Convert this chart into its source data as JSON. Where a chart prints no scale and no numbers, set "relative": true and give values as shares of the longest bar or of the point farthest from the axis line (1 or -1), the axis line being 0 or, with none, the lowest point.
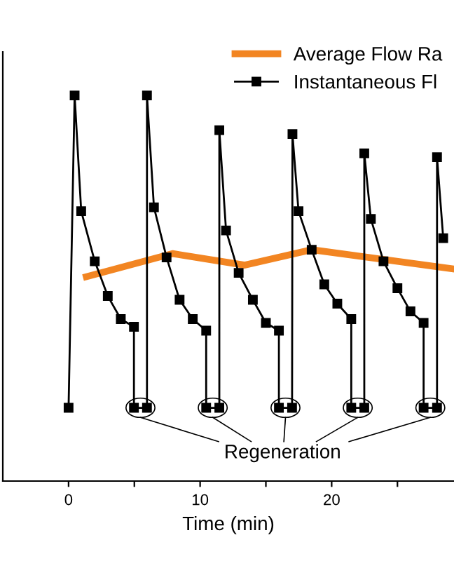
{
  "chart_data": {
    "type": "line",
    "relative": true,
    "xlabel": "Time (min)",
    "xlim": [
      -5,
      29.3
    ],
    "xticks": [
      {
        "value": 5,
        "label": null
      },
      0,
      10,
      {
        "value": 15,
        "label": null
      },
      20,
      {
        "value": 25,
        "label": null
      }
    ],
    "series": [
      {
        "name": "Average Flow Ra",
        "color": "#f28522",
        "marker": "none",
        "x": [
          1.35,
          7.9,
          13.4,
          18.5,
          29.3
        ],
        "values": [
          0.53,
          0.59,
          0.56,
          0.6,
          0.55
        ]
      },
      {
        "name": "Instantaneous Fl",
        "color": "#000000",
        "marker": "square",
        "x": [
          0.0,
          0.46,
          0.96,
          1.99,
          2.98,
          3.97,
          4.97,
          4.97,
          5.96,
          5.96,
          6.49,
          7.45,
          8.44,
          9.44,
          10.46,
          10.46,
          11.46,
          11.46,
          11.97,
          12.93,
          14.01,
          15.0,
          15.99,
          15.99,
          16.99,
          17.02,
          17.48,
          18.48,
          19.44,
          20.43,
          21.49,
          21.49,
          22.48,
          22.48,
          22.98,
          23.94,
          25.0,
          25.99,
          26.99,
          26.99,
          28.01,
          28.01,
          28.48
        ],
        "values": [
          0.19,
          1.0,
          0.7,
          0.57,
          0.48,
          0.42,
          0.4,
          0.19,
          0.19,
          1.0,
          0.71,
          0.58,
          0.47,
          0.42,
          0.39,
          0.19,
          0.19,
          0.91,
          0.65,
          0.54,
          0.47,
          0.41,
          0.39,
          0.19,
          0.19,
          0.9,
          0.7,
          0.6,
          0.51,
          0.46,
          0.42,
          0.19,
          0.19,
          0.85,
          0.68,
          0.57,
          0.5,
          0.44,
          0.41,
          0.19,
          0.19,
          0.84,
          0.63
        ]
      }
    ],
    "annotations": [
      "Regeneration"
    ],
    "legend": "top right",
    "grid": false
  }
}
